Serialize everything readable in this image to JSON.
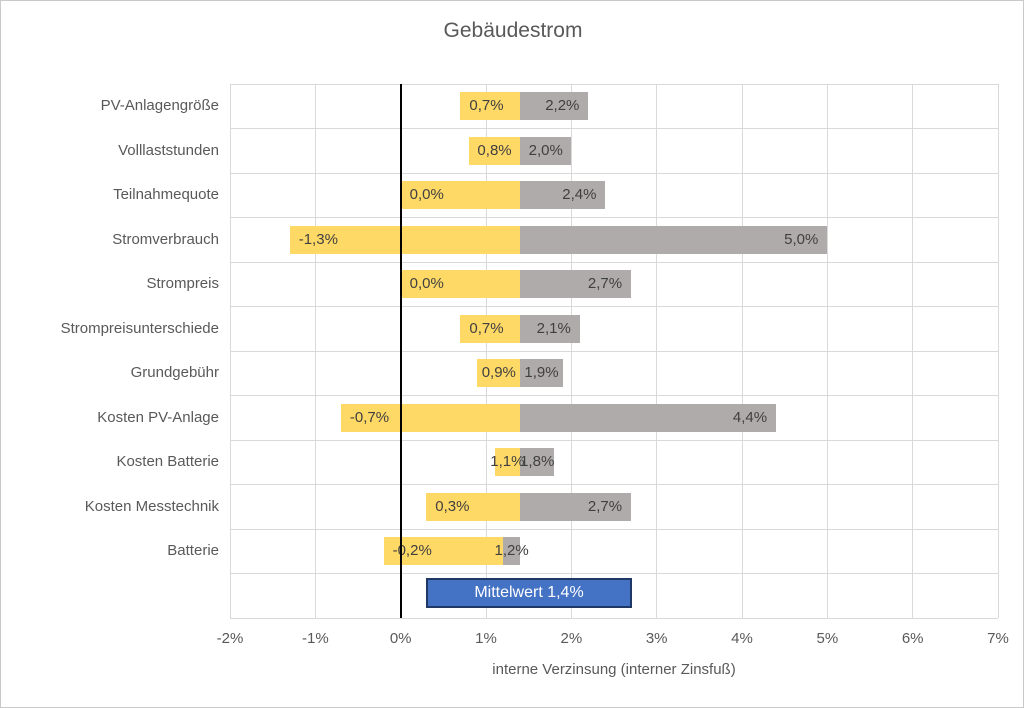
{
  "chart_data": {
    "type": "bar",
    "variant": "tornado",
    "title": "Gebäudestrom",
    "xlabel": "interne Verzinsung (interner Zinsfuß)",
    "xlim": [
      -2,
      7
    ],
    "xticks": [
      "-2%",
      "-1%",
      "0%",
      "1%",
      "2%",
      "3%",
      "4%",
      "5%",
      "6%",
      "7%"
    ],
    "grid": true,
    "legend": "none",
    "mean": 1.4,
    "mean_label": "Mittelwert 1,4%",
    "rows": [
      {
        "category": "PV-Anlagengröße",
        "low": 0.7,
        "high": 2.2,
        "low_label": "0,7%",
        "high_label": "2,2%"
      },
      {
        "category": "Volllaststunden",
        "low": 0.8,
        "high": 2.0,
        "low_label": "0,8%",
        "high_label": "2,0%"
      },
      {
        "category": "Teilnahmequote",
        "low": 0.0,
        "high": 2.4,
        "low_label": "0,0%",
        "high_label": "2,4%"
      },
      {
        "category": "Stromverbrauch",
        "low": -1.3,
        "high": 5.0,
        "low_label": "-1,3%",
        "high_label": "5,0%"
      },
      {
        "category": "Strompreis",
        "low": 0.0,
        "high": 2.7,
        "low_label": "0,0%",
        "high_label": "2,7%"
      },
      {
        "category": "Strompreisunterschiede",
        "low": 0.7,
        "high": 2.1,
        "low_label": "0,7%",
        "high_label": "2,1%"
      },
      {
        "category": "Grundgebühr",
        "low": 0.9,
        "high": 1.9,
        "low_label": "0,9%",
        "high_label": "1,9%"
      },
      {
        "category": "Kosten PV-Anlage",
        "low": -0.7,
        "high": 4.4,
        "low_label": "-0,7%",
        "high_label": "4,4%"
      },
      {
        "category": "Kosten Batterie",
        "low": 1.1,
        "high": 1.8,
        "low_label": "1,1%",
        "high_label": "1,8%"
      },
      {
        "category": "Kosten Messtechnik",
        "low": 0.3,
        "high": 2.7,
        "low_label": "0,3%",
        "high_label": "2,7%"
      },
      {
        "category": "Batterie",
        "low": -0.2,
        "high": 1.2,
        "low_label": "-0,2%",
        "high_label": "1,2%"
      }
    ],
    "colors": {
      "low_series": "#FFD966",
      "high_series": "#AFABAB",
      "mean_box_fill": "#4472C4",
      "mean_box_border": "#1F3864",
      "mean_box_text": "#FFFFFF",
      "data_label_text": "#404040",
      "axis_text": "#595959",
      "gridline": "#D9D9D9",
      "zero_line": "#000000"
    }
  }
}
